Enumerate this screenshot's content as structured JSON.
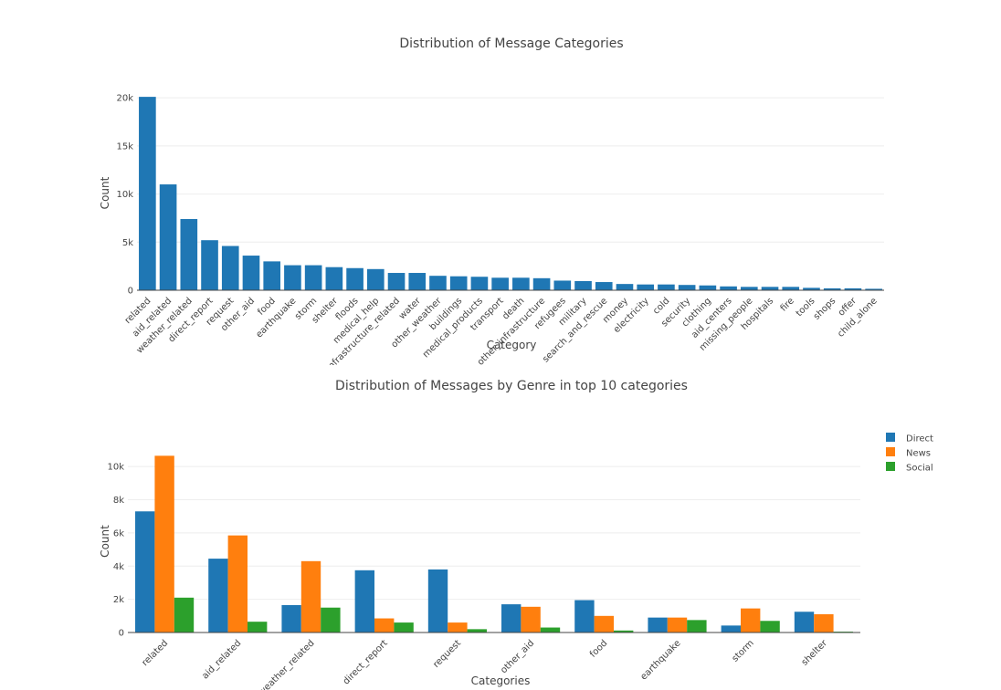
{
  "chart_data": [
    {
      "type": "bar",
      "title": "Distribution of Message Categories",
      "xlabel": "Category",
      "ylabel": "Count",
      "ylim": [
        0,
        20300
      ],
      "yticks": [
        0,
        5000,
        10000,
        15000,
        20000
      ],
      "ytick_labels": [
        "0",
        "5k",
        "10k",
        "15k",
        "20k"
      ],
      "grid": true,
      "color": "#1f77b4",
      "categories": [
        "related",
        "aid_related",
        "weather_related",
        "direct_report",
        "request",
        "other_aid",
        "food",
        "earthquake",
        "storm",
        "shelter",
        "floods",
        "medical_help",
        "infrastructure_related",
        "water",
        "other_weather",
        "buildings",
        "medical_products",
        "transport",
        "death",
        "other_infrastructure",
        "refugees",
        "military",
        "search_and_rescue",
        "money",
        "electricity",
        "cold",
        "security",
        "clothing",
        "aid_centers",
        "missing_people",
        "hospitals",
        "fire",
        "tools",
        "shops",
        "offer",
        "child_alone"
      ],
      "values": [
        20100,
        11000,
        7400,
        5200,
        4600,
        3600,
        3000,
        2600,
        2600,
        2400,
        2300,
        2200,
        1800,
        1800,
        1500,
        1450,
        1400,
        1300,
        1300,
        1250,
        1000,
        950,
        850,
        650,
        600,
        600,
        550,
        500,
        400,
        350,
        350,
        350,
        250,
        200,
        200,
        150
      ]
    },
    {
      "type": "bar",
      "title": "Distribution of Messages by Genre in top 10 categories",
      "xlabel": "Categories",
      "ylabel": "Count",
      "ylim": [
        0,
        11000
      ],
      "yticks": [
        0,
        2000,
        4000,
        6000,
        8000,
        10000
      ],
      "ytick_labels": [
        "0",
        "2k",
        "4k",
        "6k",
        "8k",
        "10k"
      ],
      "grid": true,
      "legend": "top-right",
      "categories": [
        "related",
        "aid_related",
        "weather_related",
        "direct_report",
        "request",
        "other_aid",
        "food",
        "earthquake",
        "storm",
        "shelter"
      ],
      "series": [
        {
          "name": "Direct",
          "color": "#1f77b4",
          "values": [
            7300,
            4450,
            1650,
            3750,
            3800,
            1700,
            1950,
            900,
            420,
            1250
          ]
        },
        {
          "name": "News",
          "color": "#ff7f0e",
          "values": [
            10650,
            5850,
            4300,
            850,
            600,
            1550,
            1000,
            900,
            1450,
            1100
          ]
        },
        {
          "name": "Social",
          "color": "#2ca02c",
          "values": [
            2100,
            650,
            1500,
            600,
            200,
            300,
            120,
            750,
            700,
            50
          ]
        }
      ]
    }
  ]
}
